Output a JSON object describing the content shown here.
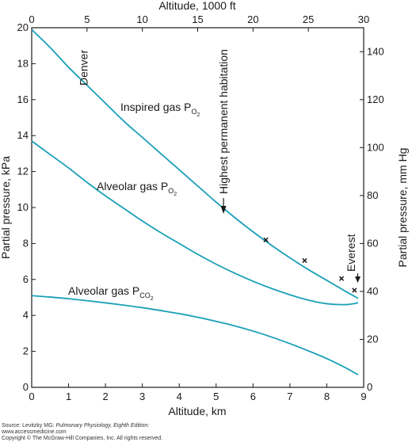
{
  "chart_data": {
    "type": "line",
    "x_bottom": {
      "label": "Altitude, km",
      "range": [
        0,
        9
      ],
      "ticks": [
        "0",
        "1",
        "2",
        "3",
        "4",
        "5",
        "6",
        "7",
        "8",
        "9"
      ]
    },
    "x_top": {
      "label": "Altitude, 1000 ft",
      "range": [
        0,
        30
      ],
      "ticks": [
        "0",
        "5",
        "10",
        "15",
        "20",
        "25",
        "30"
      ]
    },
    "y_left": {
      "label": "Partial pressure, kPa",
      "range": [
        0,
        20
      ],
      "ticks": [
        "0",
        "2",
        "4",
        "6",
        "8",
        "10",
        "12",
        "14",
        "16",
        "18",
        "20"
      ]
    },
    "y_right": {
      "label": "Partial pressure, mm Hg",
      "range": [
        0,
        150
      ],
      "ticks": [
        "0",
        "20",
        "40",
        "60",
        "80",
        "100",
        "120",
        "140"
      ]
    },
    "series": [
      {
        "name": "Inspired gas P_O2",
        "color": "#1aa0b8",
        "x": [
          0,
          0.5,
          1,
          1.5,
          2,
          2.5,
          3,
          3.5,
          4,
          4.5,
          5,
          5.5,
          6,
          6.5,
          7,
          7.5,
          8,
          8.5,
          8.85
        ],
        "y": [
          19.9,
          18.9,
          17.8,
          16.8,
          15.8,
          14.8,
          13.9,
          13.0,
          12.1,
          11.2,
          10.3,
          9.45,
          8.65,
          7.9,
          7.2,
          6.55,
          5.95,
          5.35,
          4.95
        ]
      },
      {
        "name": "Alveolar gas P_O2",
        "color": "#1aa0b8",
        "x": [
          0,
          0.5,
          1,
          1.5,
          2,
          2.5,
          3,
          3.5,
          4,
          4.5,
          5,
          5.5,
          6,
          6.5,
          7,
          7.5,
          8,
          8.5,
          8.85
        ],
        "y": [
          13.7,
          12.95,
          12.2,
          11.4,
          10.65,
          9.95,
          9.25,
          8.6,
          8.0,
          7.4,
          6.85,
          6.35,
          5.9,
          5.5,
          5.15,
          4.85,
          4.65,
          4.6,
          4.7
        ]
      },
      {
        "name": "Alveolar gas P_CO2",
        "color": "#1aa0b8",
        "x": [
          0,
          0.5,
          1,
          1.5,
          2,
          2.5,
          3,
          3.5,
          4,
          4.5,
          5,
          5.5,
          6,
          6.5,
          7,
          7.5,
          8,
          8.5,
          8.85
        ],
        "y": [
          5.1,
          5.02,
          4.93,
          4.82,
          4.7,
          4.57,
          4.43,
          4.27,
          4.1,
          3.9,
          3.67,
          3.42,
          3.13,
          2.8,
          2.43,
          2.03,
          1.6,
          1.1,
          0.7
        ]
      }
    ],
    "observations_x_marks": [
      {
        "x": 6.35,
        "y": 8.2
      },
      {
        "x": 7.4,
        "y": 7.05
      },
      {
        "x": 8.4,
        "y": 6.05
      },
      {
        "x": 8.75,
        "y": 5.4
      }
    ],
    "annotations": [
      {
        "text": "Denver",
        "x": 1.6
      },
      {
        "text": "Highest permanent habitation",
        "x": 5.2
      },
      {
        "text": "Everest",
        "x": 8.85
      }
    ],
    "labels": {
      "inspired_main": "Inspired gas P",
      "inspired_sub1": "O",
      "inspired_sub2": "2",
      "alv_o2_main": "Alveolar gas P",
      "alv_o2_sub1": "O",
      "alv_o2_sub2": "2",
      "alv_co2_main": "Alveolar gas P",
      "alv_co2_sub1": "CO",
      "alv_co2_sub2": "2"
    },
    "grid": false
  },
  "source": {
    "line1_prefix": "Source: Levitzky MG: ",
    "line1_italic": "Pulmonary Physiology, Eighth Edition:",
    "line2": "www.accessmedicine.com",
    "line3": "Copyright © The McGraw-Hill Companies, Inc. All rights reserved."
  }
}
